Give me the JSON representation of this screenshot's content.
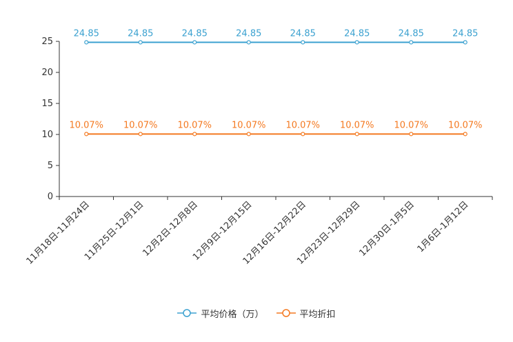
{
  "chart_data": {
    "type": "line",
    "title": "",
    "xlabel": "",
    "ylabel": "",
    "categories": [
      "11月18日-11月24日",
      "11月25日-12月1日",
      "12月2日-12月8日",
      "12月9日-12月15日",
      "12月16日-12月22日",
      "12月23日-12月29日",
      "12月30日-1月5日",
      "1月6日-1月12日"
    ],
    "ylim": [
      0,
      25
    ],
    "yticks": [
      0,
      5,
      10,
      15,
      20,
      25
    ],
    "series": [
      {
        "name": "平均价格（万）",
        "color": "#3ba1d0",
        "values": [
          24.85,
          24.85,
          24.85,
          24.85,
          24.85,
          24.85,
          24.85,
          24.85
        ],
        "labels": [
          "24.85",
          "24.85",
          "24.85",
          "24.85",
          "24.85",
          "24.85",
          "24.85",
          "24.85"
        ]
      },
      {
        "name": "平均折扣",
        "color": "#f47920",
        "values": [
          10.07,
          10.07,
          10.07,
          10.07,
          10.07,
          10.07,
          10.07,
          10.07
        ],
        "labels": [
          "10.07%",
          "10.07%",
          "10.07%",
          "10.07%",
          "10.07%",
          "10.07%",
          "10.07%",
          "10.07%"
        ]
      }
    ],
    "legend_position": "bottom-center"
  }
}
